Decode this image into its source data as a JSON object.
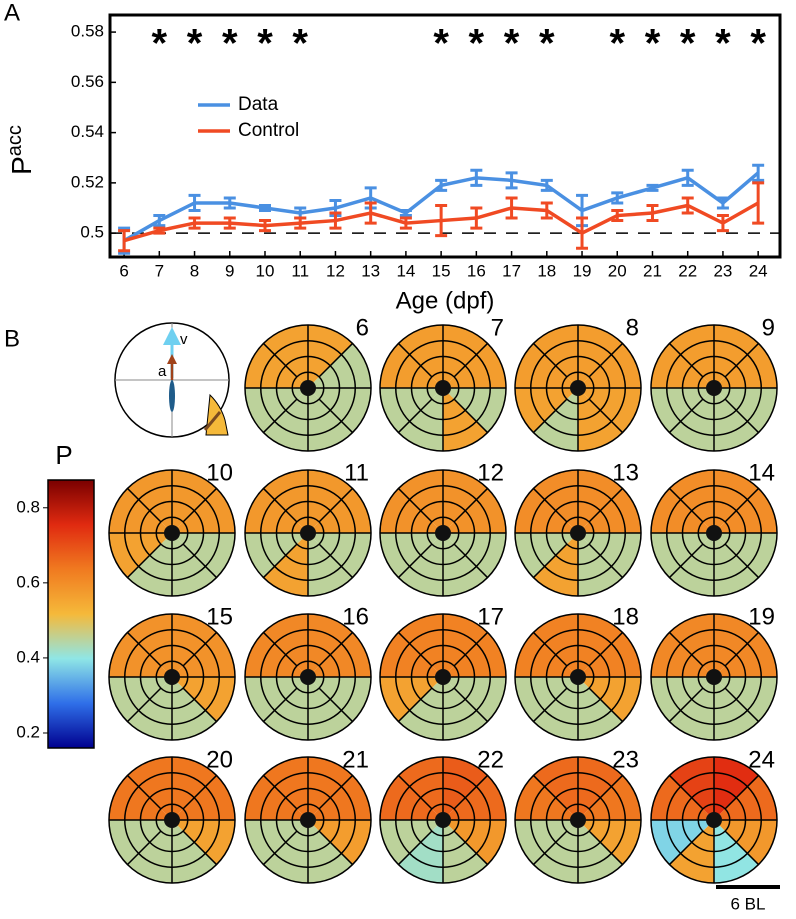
{
  "chart_data": [
    {
      "type": "line",
      "panel_label": "A",
      "ylabel": "P",
      "ylabel_sub": "acc",
      "xlabel": "Age (dpf)",
      "x": [
        6,
        7,
        8,
        9,
        10,
        11,
        12,
        13,
        14,
        15,
        16,
        17,
        18,
        19,
        20,
        21,
        22,
        23,
        24
      ],
      "xlim": [
        5.6,
        24.62
      ],
      "xticks": [
        6,
        7,
        8,
        9,
        10,
        11,
        12,
        13,
        14,
        15,
        16,
        17,
        18,
        19,
        20,
        21,
        22,
        23,
        24
      ],
      "ylim": [
        0.4905,
        0.5868
      ],
      "yticks": [
        0.5,
        0.52,
        0.54,
        0.56,
        0.58
      ],
      "reference_line": 0.5,
      "series": [
        {
          "name": "Data",
          "color": "#4a90e2",
          "values": [
            0.497,
            0.505,
            0.512,
            0.512,
            0.51,
            0.508,
            0.51,
            0.514,
            0.508,
            0.519,
            0.522,
            0.521,
            0.519,
            0.509,
            0.514,
            0.518,
            0.522,
            0.512,
            0.524
          ],
          "errors": [
            0.005,
            0.002,
            0.003,
            0.002,
            0.001,
            0.002,
            0.003,
            0.004,
            0.001,
            0.002,
            0.003,
            0.003,
            0.002,
            0.006,
            0.002,
            0.001,
            0.003,
            0.002,
            0.003
          ]
        },
        {
          "name": "Control",
          "color": "#f04a23",
          "values": [
            0.497,
            0.501,
            0.504,
            0.504,
            0.503,
            0.504,
            0.505,
            0.508,
            0.504,
            0.505,
            0.506,
            0.51,
            0.509,
            0.5,
            0.507,
            0.508,
            0.511,
            0.504,
            0.512
          ],
          "errors": [
            0.004,
            0.001,
            0.002,
            0.002,
            0.002,
            0.002,
            0.003,
            0.004,
            0.002,
            0.006,
            0.004,
            0.004,
            0.003,
            0.006,
            0.002,
            0.003,
            0.003,
            0.003,
            0.008
          ]
        }
      ],
      "significance_marker": "*",
      "significant": [
        7,
        8,
        9,
        10,
        11,
        15,
        16,
        17,
        18,
        20,
        21,
        22,
        23,
        24
      ]
    },
    {
      "type": "polar-heatmap",
      "panel_label": "B",
      "colorbar_label": "P",
      "clim": [
        0.16,
        0.874
      ],
      "cticks": [
        0.2,
        0.4,
        0.6,
        0.8
      ],
      "colormap": [
        "#00008f",
        "#2f6fe8",
        "#8fe6e6",
        "#f5b93a",
        "#f07a20",
        "#e02a10",
        "#7a0000"
      ],
      "inset_labels": [
        "a",
        "v"
      ],
      "scale_bar_label": "6 BL",
      "panels": [
        {
          "label": "6",
          "values": [
            0.56,
            0.45,
            0.45,
            0.45,
            0.45,
            0.45,
            0.56,
            0.56
          ]
        },
        {
          "label": "7",
          "values": [
            0.57,
            0.57,
            0.45,
            0.56,
            0.45,
            0.45,
            0.57,
            0.57
          ]
        },
        {
          "label": "8",
          "values": [
            0.57,
            0.57,
            0.56,
            0.56,
            0.45,
            0.56,
            0.57,
            0.57
          ]
        },
        {
          "label": "9",
          "values": [
            0.57,
            0.57,
            0.45,
            0.45,
            0.45,
            0.45,
            0.57,
            0.57
          ]
        },
        {
          "label": "10",
          "values": [
            0.58,
            0.58,
            0.45,
            0.45,
            0.45,
            0.56,
            0.58,
            0.58
          ]
        },
        {
          "label": "11",
          "values": [
            0.58,
            0.58,
            0.45,
            0.45,
            0.56,
            0.45,
            0.58,
            0.58
          ]
        },
        {
          "label": "12",
          "values": [
            0.59,
            0.59,
            0.45,
            0.45,
            0.45,
            0.45,
            0.59,
            0.59
          ]
        },
        {
          "label": "13",
          "values": [
            0.6,
            0.6,
            0.45,
            0.45,
            0.56,
            0.45,
            0.6,
            0.6
          ]
        },
        {
          "label": "14",
          "values": [
            0.6,
            0.6,
            0.45,
            0.45,
            0.45,
            0.45,
            0.6,
            0.6
          ]
        },
        {
          "label": "15",
          "values": [
            0.59,
            0.59,
            0.56,
            0.45,
            0.45,
            0.45,
            0.59,
            0.59
          ]
        },
        {
          "label": "16",
          "values": [
            0.61,
            0.61,
            0.45,
            0.45,
            0.45,
            0.45,
            0.61,
            0.61
          ]
        },
        {
          "label": "17",
          "values": [
            0.62,
            0.62,
            0.45,
            0.45,
            0.45,
            0.56,
            0.62,
            0.62
          ]
        },
        {
          "label": "18",
          "values": [
            0.62,
            0.62,
            0.56,
            0.45,
            0.45,
            0.45,
            0.62,
            0.62
          ]
        },
        {
          "label": "19",
          "values": [
            0.61,
            0.61,
            0.45,
            0.45,
            0.45,
            0.45,
            0.61,
            0.61
          ]
        },
        {
          "label": "20",
          "values": [
            0.64,
            0.64,
            0.56,
            0.45,
            0.45,
            0.45,
            0.64,
            0.64
          ]
        },
        {
          "label": "21",
          "values": [
            0.64,
            0.64,
            0.57,
            0.45,
            0.45,
            0.45,
            0.64,
            0.64
          ]
        },
        {
          "label": "22",
          "values": [
            0.68,
            0.66,
            0.58,
            0.45,
            0.42,
            0.45,
            0.66,
            0.66
          ]
        },
        {
          "label": "23",
          "values": [
            0.66,
            0.64,
            0.56,
            0.45,
            0.45,
            0.45,
            0.64,
            0.66
          ]
        },
        {
          "label": "24",
          "values": [
            0.75,
            0.66,
            0.58,
            0.4,
            0.56,
            0.38,
            0.66,
            0.72
          ]
        }
      ]
    }
  ]
}
